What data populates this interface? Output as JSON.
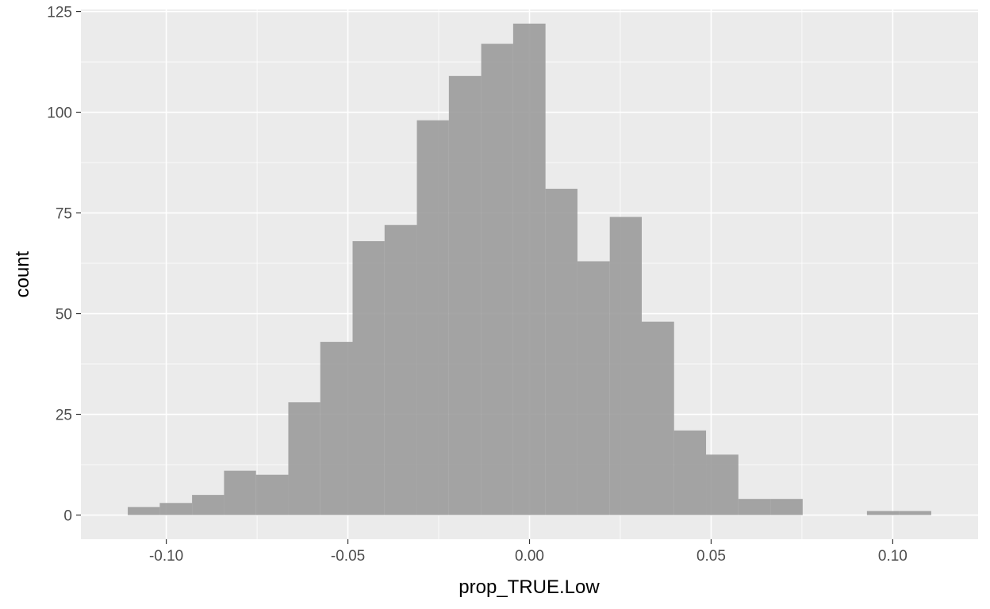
{
  "colors": {
    "panel_background": "#ebebeb",
    "grid_major": "#ffffff",
    "bar_fill": "#999999",
    "tick_color": "#333333",
    "tick_label_color": "#4d4d4d"
  },
  "chart_data": {
    "type": "bar",
    "subtype": "histogram",
    "title": "",
    "xlabel": "prop_TRUE.Low",
    "ylabel": "count",
    "xlim": [
      -0.1235,
      0.1235
    ],
    "ylim": [
      -6,
      125.5
    ],
    "x_ticks": [
      {
        "value": -0.1,
        "label": "-0.10"
      },
      {
        "value": -0.05,
        "label": "-0.05"
      },
      {
        "value": 0.0,
        "label": "0.00"
      },
      {
        "value": 0.05,
        "label": "0.05"
      },
      {
        "value": 0.1,
        "label": "0.10"
      }
    ],
    "y_ticks": [
      {
        "value": 0,
        "label": "0"
      },
      {
        "value": 25,
        "label": "25"
      },
      {
        "value": 50,
        "label": "50"
      },
      {
        "value": 75,
        "label": "75"
      },
      {
        "value": 100,
        "label": "100"
      },
      {
        "value": 125,
        "label": "125"
      }
    ],
    "grid": true,
    "bins": [
      {
        "start": -0.1106,
        "end": -0.1018,
        "count": 2
      },
      {
        "start": -0.1018,
        "end": -0.0929,
        "count": 3
      },
      {
        "start": -0.0929,
        "end": -0.0841,
        "count": 5
      },
      {
        "start": -0.0841,
        "end": -0.0753,
        "count": 11
      },
      {
        "start": -0.0753,
        "end": -0.0664,
        "count": 10
      },
      {
        "start": -0.0664,
        "end": -0.0576,
        "count": 28
      },
      {
        "start": -0.0576,
        "end": -0.0487,
        "count": 43
      },
      {
        "start": -0.0487,
        "end": -0.0399,
        "count": 68
      },
      {
        "start": -0.0399,
        "end": -0.031,
        "count": 72
      },
      {
        "start": -0.031,
        "end": -0.0222,
        "count": 98
      },
      {
        "start": -0.0222,
        "end": -0.0133,
        "count": 109
      },
      {
        "start": -0.0133,
        "end": -0.0045,
        "count": 117
      },
      {
        "start": -0.0045,
        "end": 0.0044,
        "count": 122
      },
      {
        "start": 0.0044,
        "end": 0.0132,
        "count": 81
      },
      {
        "start": 0.0132,
        "end": 0.0221,
        "count": 63
      },
      {
        "start": 0.0221,
        "end": 0.0309,
        "count": 74
      },
      {
        "start": 0.0309,
        "end": 0.0398,
        "count": 48
      },
      {
        "start": 0.0398,
        "end": 0.0486,
        "count": 21
      },
      {
        "start": 0.0486,
        "end": 0.0575,
        "count": 15
      },
      {
        "start": 0.0575,
        "end": 0.0663,
        "count": 4
      },
      {
        "start": 0.0663,
        "end": 0.0752,
        "count": 4
      },
      {
        "start": 0.0752,
        "end": 0.084,
        "count": 0
      },
      {
        "start": 0.084,
        "end": 0.0929,
        "count": 0
      },
      {
        "start": 0.0929,
        "end": 0.1017,
        "count": 1
      },
      {
        "start": 0.1017,
        "end": 0.1106,
        "count": 1
      }
    ]
  }
}
